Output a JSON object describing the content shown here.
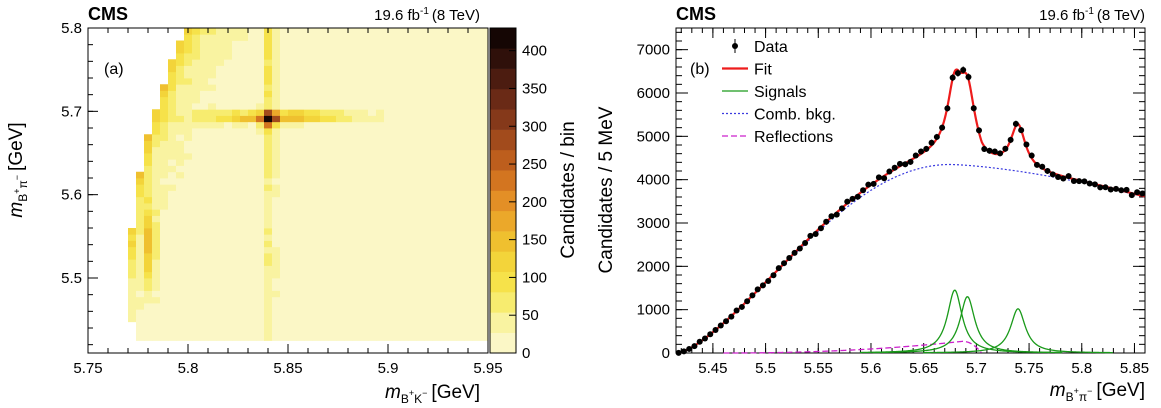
{
  "chart_data": [
    {
      "type": "heatmap",
      "panel": "(a)",
      "experiment": "CMS",
      "lumi": "19.6 fb",
      "lumi_sup": "-1",
      "energy": "(8 TeV)",
      "xlabel": {
        "sym": "m",
        "sub": "B",
        "sub_sup": "+",
        "sub2": "K",
        "sub2_sup": "−",
        "unit": "[GeV]"
      },
      "ylabel": {
        "sym": "m",
        "sub": "B",
        "sub_sup": "+",
        "sub2": "π",
        "sub2_sup": "−",
        "unit": "[GeV]"
      },
      "xlim": [
        5.75,
        5.95
      ],
      "ylim": [
        5.41,
        5.8
      ],
      "xticks": [
        5.75,
        5.8,
        5.85,
        5.9,
        5.95
      ],
      "xtick_labels": [
        "5.75",
        "5.8",
        "5.85",
        "5.9",
        "5.95"
      ],
      "yticks": [
        5.5,
        5.6,
        5.7,
        5.8
      ],
      "ytick_labels": [
        "5.5",
        "5.6",
        "5.7",
        "5.8"
      ],
      "colorbar": {
        "label": "Candidates / bin",
        "range": [
          0,
          430
        ],
        "ticks": [
          0,
          50,
          100,
          150,
          200,
          250,
          300,
          350,
          400
        ],
        "tick_labels": [
          "0",
          "50",
          "100",
          "150",
          "200",
          "250",
          "300",
          "350",
          "400"
        ],
        "colors": [
          "#fbf7c6",
          "#f9f3a1",
          "#f7ec6f",
          "#f6e24a",
          "#f3d43a",
          "#efc02f",
          "#eba82a",
          "#e38f26",
          "#d37520",
          "#bd5e1d",
          "#a24b1c",
          "#85391a",
          "#6a2a16",
          "#4c1c10",
          "#2f100a",
          "#150604"
        ]
      },
      "features": {
        "vertical_band_x": 5.841,
        "horizontal_band_y": 5.694,
        "left_band_x": 5.781,
        "peak_count": 420
      }
    },
    {
      "type": "line",
      "panel": "(b)",
      "experiment": "CMS",
      "lumi": "19.6 fb",
      "lumi_sup": "-1",
      "energy": "(8 TeV)",
      "xlabel": {
        "sym": "m",
        "sub": "B",
        "sub_sup": "+",
        "sub2": "π",
        "sub2_sup": "−",
        "unit": "[GeV]"
      },
      "ylabel": "Candidates / 5 MeV",
      "xlim": [
        5.415,
        5.86
      ],
      "ylim": [
        0,
        7500
      ],
      "xticks": [
        5.45,
        5.5,
        5.55,
        5.6,
        5.65,
        5.7,
        5.75,
        5.8,
        5.85
      ],
      "xtick_labels": [
        "5.45",
        "5.5",
        "5.55",
        "5.6",
        "5.65",
        "5.7",
        "5.75",
        "5.8",
        "5.85"
      ],
      "yticks": [
        0,
        1000,
        2000,
        3000,
        4000,
        5000,
        6000,
        7000
      ],
      "ytick_labels": [
        "0",
        "1000",
        "2000",
        "3000",
        "4000",
        "5000",
        "6000",
        "7000"
      ],
      "legend": {
        "position": "top-left",
        "entries": [
          {
            "label": "Data",
            "style": "marker",
            "color": "#000000"
          },
          {
            "label": "Fit",
            "style": "solid",
            "color": "#ee1c1c"
          },
          {
            "label": "Signals",
            "style": "solid",
            "color": "#1a9a1a"
          },
          {
            "label": "Comb. bkg.",
            "style": "dotted",
            "color": "#3a3adf"
          },
          {
            "label": "Reflections",
            "style": "dashed",
            "color": "#cc22cc"
          }
        ]
      },
      "components": {
        "combinatorial": {
          "threshold": 5.418,
          "peak_x": 5.675,
          "peak_y": 4350,
          "end_x": 5.86,
          "end_y": 3600
        },
        "signals": [
          {
            "mean": 5.6795,
            "width": 0.0085,
            "amplitude": 1450
          },
          {
            "mean": 5.6915,
            "width": 0.0085,
            "amplitude": 1300
          },
          {
            "mean": 5.7395,
            "width": 0.0085,
            "amplitude": 1020
          }
        ],
        "reflections": {
          "start_x": 5.46,
          "peak_x": 5.687,
          "peak_y": 270,
          "end_x": 5.705
        }
      }
    }
  ]
}
